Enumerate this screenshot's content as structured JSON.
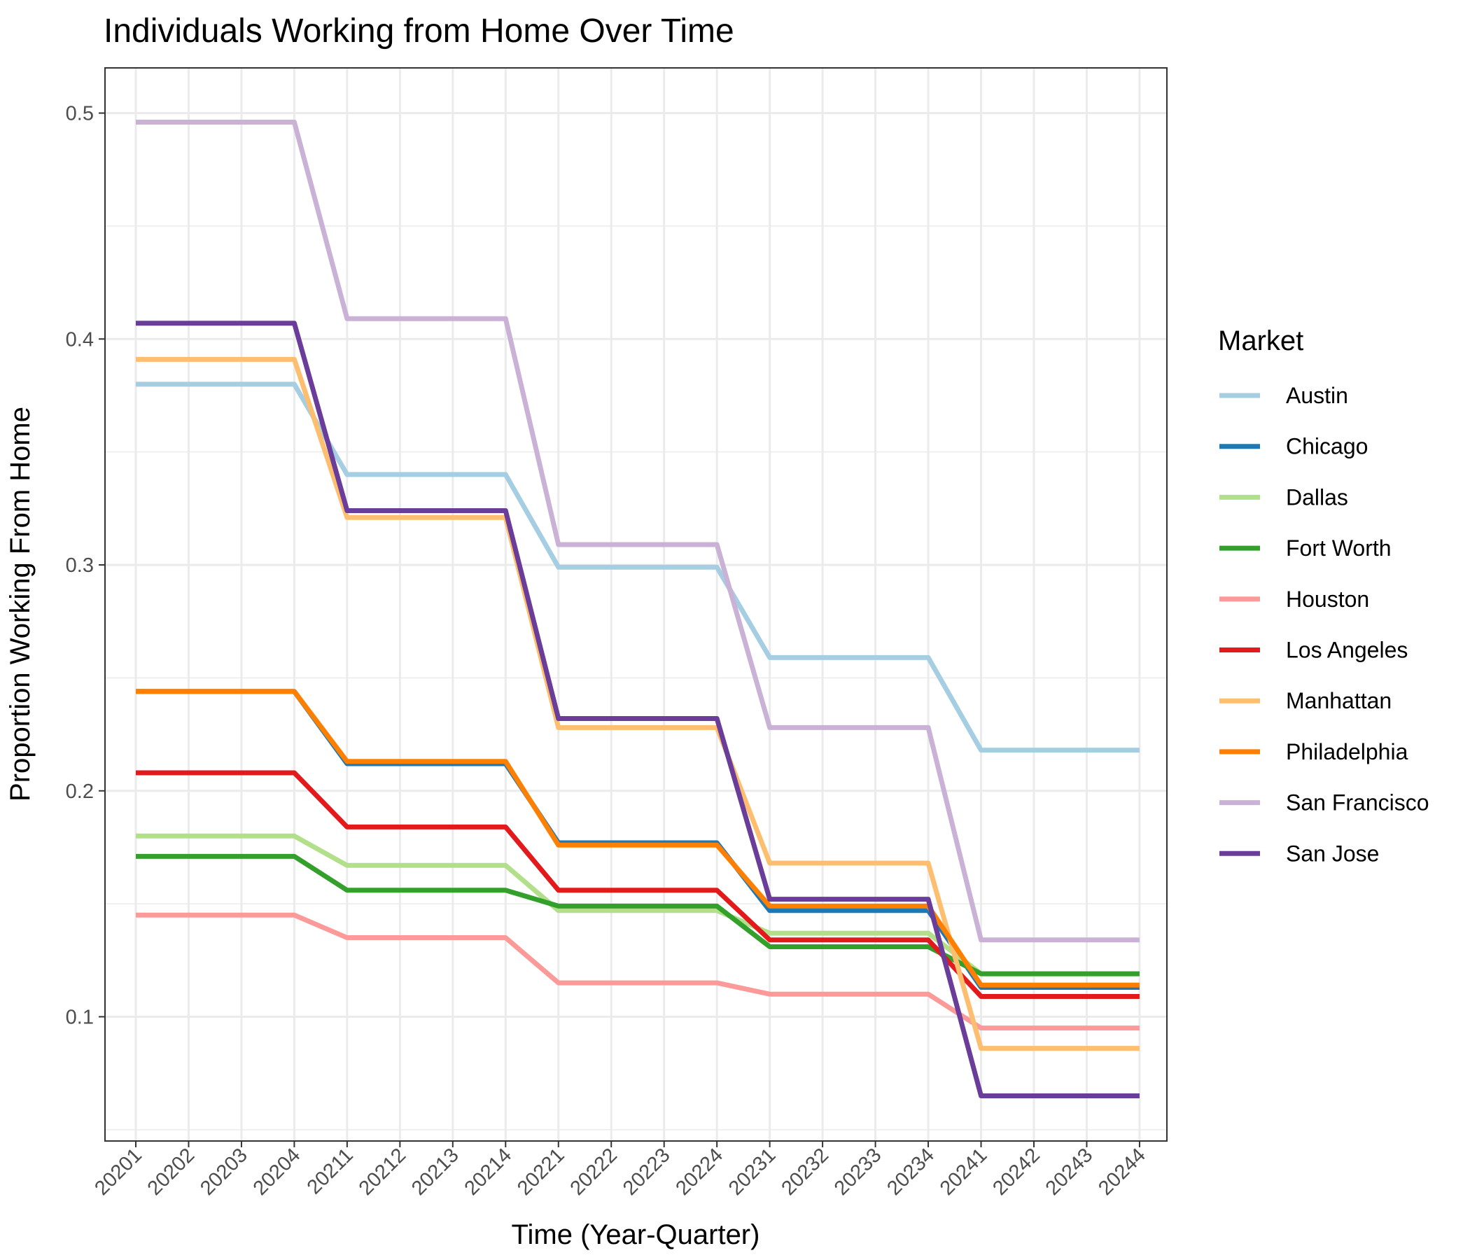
{
  "chart_data": {
    "type": "line",
    "title": "Individuals Working from Home Over Time",
    "xlabel": "Time (Year-Quarter)",
    "ylabel": "Proportion Working From Home",
    "categories": [
      "20201",
      "20202",
      "20203",
      "20204",
      "20211",
      "20212",
      "20213",
      "20214",
      "20221",
      "20222",
      "20223",
      "20224",
      "20231",
      "20232",
      "20233",
      "20234",
      "20241",
      "20242",
      "20243",
      "20244"
    ],
    "ylim": [
      0.045,
      0.52
    ],
    "yticks": [
      0.1,
      0.2,
      0.3,
      0.4,
      0.5
    ],
    "ytick_labels": [
      "0.1",
      "0.2",
      "0.3",
      "0.4",
      "0.5"
    ],
    "grid": true,
    "legend": {
      "title": "Market",
      "position": "right"
    },
    "series": [
      {
        "name": "Austin",
        "color": "#a6cee3",
        "values": [
          0.38,
          0.38,
          0.38,
          0.38,
          0.34,
          0.34,
          0.34,
          0.34,
          0.299,
          0.299,
          0.299,
          0.299,
          0.259,
          0.259,
          0.259,
          0.259,
          0.218,
          0.218,
          0.218,
          0.218
        ]
      },
      {
        "name": "Chicago",
        "color": "#1f78b4",
        "values": [
          0.244,
          0.244,
          0.244,
          0.244,
          0.212,
          0.212,
          0.212,
          0.212,
          0.177,
          0.177,
          0.177,
          0.177,
          0.147,
          0.147,
          0.147,
          0.147,
          0.113,
          0.113,
          0.113,
          0.113
        ]
      },
      {
        "name": "Dallas",
        "color": "#b2df8a",
        "values": [
          0.18,
          0.18,
          0.18,
          0.18,
          0.167,
          0.167,
          0.167,
          0.167,
          0.147,
          0.147,
          0.147,
          0.147,
          0.137,
          0.137,
          0.137,
          0.137,
          0.119,
          0.119,
          0.119,
          0.119
        ]
      },
      {
        "name": "Fort Worth",
        "color": "#33a02c",
        "values": [
          0.171,
          0.171,
          0.171,
          0.171,
          0.156,
          0.156,
          0.156,
          0.156,
          0.149,
          0.149,
          0.149,
          0.149,
          0.131,
          0.131,
          0.131,
          0.131,
          0.119,
          0.119,
          0.119,
          0.119
        ]
      },
      {
        "name": "Houston",
        "color": "#fb9a99",
        "values": [
          0.145,
          0.145,
          0.145,
          0.145,
          0.135,
          0.135,
          0.135,
          0.135,
          0.115,
          0.115,
          0.115,
          0.115,
          0.11,
          0.11,
          0.11,
          0.11,
          0.095,
          0.095,
          0.095,
          0.095
        ]
      },
      {
        "name": "Los Angeles",
        "color": "#e31a1c",
        "values": [
          0.208,
          0.208,
          0.208,
          0.208,
          0.184,
          0.184,
          0.184,
          0.184,
          0.156,
          0.156,
          0.156,
          0.156,
          0.134,
          0.134,
          0.134,
          0.134,
          0.109,
          0.109,
          0.109,
          0.109
        ]
      },
      {
        "name": "Manhattan",
        "color": "#fdbf6f",
        "values": [
          0.391,
          0.391,
          0.391,
          0.391,
          0.321,
          0.321,
          0.321,
          0.321,
          0.228,
          0.228,
          0.228,
          0.228,
          0.168,
          0.168,
          0.168,
          0.168,
          0.086,
          0.086,
          0.086,
          0.086
        ]
      },
      {
        "name": "Philadelphia",
        "color": "#ff7f00",
        "values": [
          0.244,
          0.244,
          0.244,
          0.244,
          0.213,
          0.213,
          0.213,
          0.213,
          0.176,
          0.176,
          0.176,
          0.176,
          0.149,
          0.149,
          0.149,
          0.149,
          0.114,
          0.114,
          0.114,
          0.114
        ]
      },
      {
        "name": "San Francisco",
        "color": "#cab2d6",
        "values": [
          0.496,
          0.496,
          0.496,
          0.496,
          0.409,
          0.409,
          0.409,
          0.409,
          0.309,
          0.309,
          0.309,
          0.309,
          0.228,
          0.228,
          0.228,
          0.228,
          0.134,
          0.134,
          0.134,
          0.134
        ]
      },
      {
        "name": "San Jose",
        "color": "#6a3d9a",
        "values": [
          0.407,
          0.407,
          0.407,
          0.407,
          0.324,
          0.324,
          0.324,
          0.324,
          0.232,
          0.232,
          0.232,
          0.232,
          0.152,
          0.152,
          0.152,
          0.152,
          0.065,
          0.065,
          0.065,
          0.065
        ]
      }
    ]
  }
}
